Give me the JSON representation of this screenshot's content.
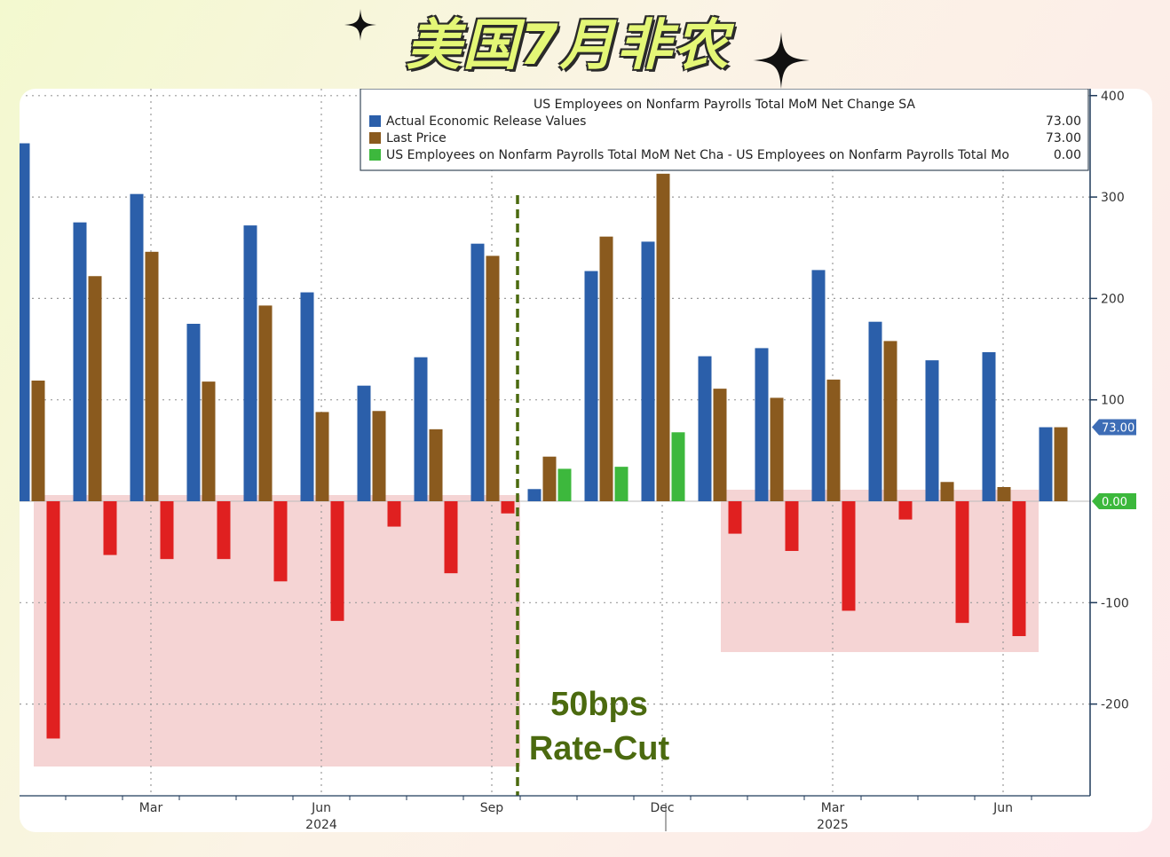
{
  "header": {
    "title": "美国7月非农"
  },
  "chart_data": {
    "type": "bar",
    "title": "US Employees on Nonfarm Payrolls Total MoM Net Change SA",
    "categories": [
      "2024-01",
      "2024-02",
      "2024-03",
      "2024-04",
      "2024-05",
      "2024-06",
      "2024-07",
      "2024-08",
      "2024-09",
      "2024-10",
      "2024-11",
      "2024-12",
      "2025-01",
      "2025-02",
      "2025-03",
      "2025-04",
      "2025-05",
      "2025-06",
      "2025-07"
    ],
    "series": [
      {
        "name": "Actual Economic Release Values",
        "color": "#2b5faa",
        "values": [
          353,
          275,
          303,
          175,
          272,
          206,
          114,
          142,
          254,
          12,
          227,
          256,
          143,
          151,
          228,
          177,
          139,
          147,
          73
        ]
      },
      {
        "name": "Last Price",
        "color": "#8a5a1e",
        "values": [
          119,
          222,
          246,
          118,
          193,
          88,
          89,
          71,
          242,
          44,
          261,
          323,
          111,
          102,
          120,
          158,
          19,
          14,
          73
        ]
      },
      {
        "name": "US Employees on Nonfarm Payrolls Total MoM Net Cha - US Employees on Nonfarm Payrolls Total Mo",
        "color": "#3db83d",
        "values": [
          -234,
          -53,
          -57,
          -57,
          -79,
          -118,
          -25,
          -71,
          -12,
          32,
          34,
          68,
          -32,
          -49,
          -108,
          -18,
          -120,
          -133,
          0
        ]
      }
    ],
    "legend_values": [
      "73.00",
      "73.00",
      "0.00"
    ],
    "negative_color": "#e02020",
    "ylim": [
      -290,
      400
    ],
    "y_ticks": [
      400,
      300,
      200,
      100,
      -100,
      -200
    ],
    "y_tick_labels": [
      "400",
      "300",
      "200",
      "100",
      "-100",
      "-200"
    ],
    "value_tags": [
      {
        "label": "73.00",
        "value": 73,
        "color": "#3d6db6"
      },
      {
        "label": "0.00",
        "value": 0,
        "color": "#3cb83c"
      }
    ],
    "x_tick_labels": [
      {
        "label": "Mar",
        "index": 2
      },
      {
        "label": "Jun",
        "index": 5
      },
      {
        "label": "Sep",
        "index": 8
      },
      {
        "label": "Dec",
        "index": 11
      },
      {
        "label": "Mar",
        "index": 14
      },
      {
        "label": "Jun",
        "index": 17
      }
    ],
    "year_labels": [
      {
        "label": "2024",
        "index": 5
      },
      {
        "label": "2025",
        "index": 14
      }
    ],
    "annotation": {
      "lines": [
        "50bps",
        "Rate-Cut"
      ],
      "after_index": 8
    },
    "grid": true,
    "legend_position": "top"
  }
}
